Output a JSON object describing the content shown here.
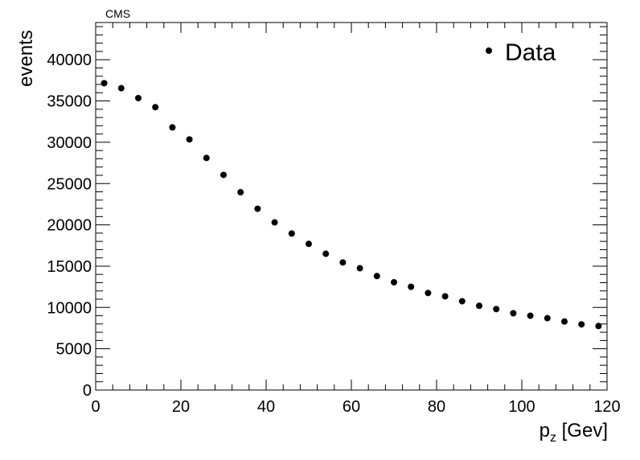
{
  "header": {
    "text": "CMS"
  },
  "chart_data": {
    "type": "scatter",
    "xlabel": {
      "main": "p",
      "sub": "z",
      "rest": " [Gev]"
    },
    "ylabel": "events",
    "xlim": [
      0,
      120
    ],
    "ylim": [
      0,
      44500
    ],
    "xticks": [
      0,
      20,
      40,
      60,
      80,
      100,
      120
    ],
    "yticks": [
      0,
      5000,
      10000,
      15000,
      20000,
      25000,
      30000,
      35000,
      40000
    ],
    "grid": false,
    "legend": {
      "position": "top-right",
      "entries": [
        "Data"
      ]
    },
    "series": [
      {
        "name": "Data",
        "color": "#000000",
        "x": [
          2,
          6,
          10,
          14,
          18,
          22,
          26,
          30,
          34,
          38,
          42,
          46,
          50,
          54,
          58,
          62,
          66,
          70,
          74,
          78,
          82,
          86,
          90,
          94,
          98,
          102,
          106,
          110,
          114,
          118
        ],
        "y": [
          37150,
          36550,
          35350,
          34250,
          31800,
          30350,
          28100,
          26050,
          23950,
          21950,
          20300,
          18950,
          17700,
          16500,
          15450,
          14750,
          13800,
          13050,
          12500,
          11750,
          11350,
          10750,
          10200,
          9800,
          9300,
          9000,
          8700,
          8300,
          7950,
          7750
        ]
      }
    ]
  }
}
